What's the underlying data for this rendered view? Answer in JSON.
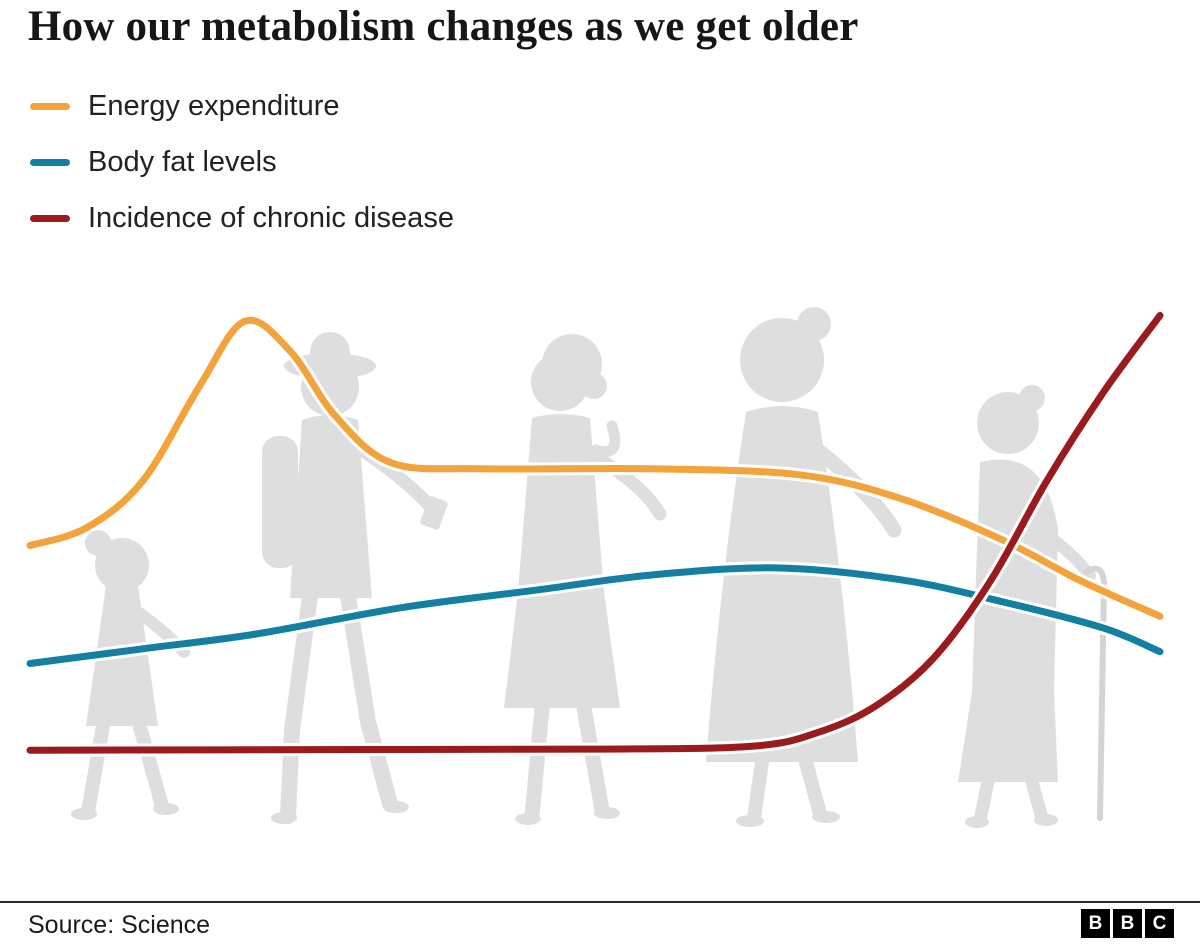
{
  "title": "How our metabolism changes as we get older",
  "legend": [
    {
      "label": "Energy expenditure",
      "color": "#F2A33B"
    },
    {
      "label": "Body fat levels",
      "color": "#1380A1"
    },
    {
      "label": "Incidence of chronic disease",
      "color": "#991B1E"
    }
  ],
  "footer": {
    "source": "Source: Science",
    "logo_letters": [
      "B",
      "B",
      "C"
    ]
  },
  "colors": {
    "silhouette": "#dedede",
    "line_halo": "#ffffff",
    "divider": "#2b2b2b"
  },
  "chart_data": {
    "type": "line",
    "title": "How our metabolism changes as we get older",
    "xlabel": "",
    "ylabel": "",
    "x_range": [
      0,
      100
    ],
    "y_range": [
      0,
      100
    ],
    "grid": false,
    "axes_shown": false,
    "legend_position": "top-left",
    "x_meaning": "life course from childhood (left) to old age (right), no tick labels shown",
    "y_meaning": "relative level, no tick labels shown",
    "series": [
      {
        "name": "Energy expenditure",
        "color": "#F2A33B",
        "points": [
          [
            0,
            55
          ],
          [
            5,
            58
          ],
          [
            10,
            66
          ],
          [
            15,
            82
          ],
          [
            19,
            93
          ],
          [
            23,
            88
          ],
          [
            27,
            77
          ],
          [
            32,
            69
          ],
          [
            40,
            68
          ],
          [
            55,
            68
          ],
          [
            68,
            67
          ],
          [
            77,
            63
          ],
          [
            86,
            56
          ],
          [
            93,
            49
          ],
          [
            100,
            43
          ]
        ]
      },
      {
        "name": "Body fat levels",
        "color": "#1380A1",
        "points": [
          [
            0,
            35
          ],
          [
            10,
            37.5
          ],
          [
            20,
            40
          ],
          [
            33,
            44.5
          ],
          [
            45,
            47.5
          ],
          [
            55,
            50
          ],
          [
            66,
            51.2
          ],
          [
            77,
            49.2
          ],
          [
            86,
            45.5
          ],
          [
            95,
            41
          ],
          [
            100,
            37
          ]
        ]
      },
      {
        "name": "Incidence of chronic disease",
        "color": "#991B1E",
        "points": [
          [
            0,
            20.3
          ],
          [
            25,
            20.4
          ],
          [
            50,
            20.5
          ],
          [
            64,
            21
          ],
          [
            70,
            23.5
          ],
          [
            75,
            28
          ],
          [
            80,
            36
          ],
          [
            85,
            49
          ],
          [
            90,
            66
          ],
          [
            95,
            81
          ],
          [
            100,
            94
          ]
        ]
      }
    ],
    "background_figures": [
      "child",
      "teenager-with-backpack",
      "adult-woman",
      "middle-aged-woman",
      "elderly-woman-with-cane"
    ]
  }
}
